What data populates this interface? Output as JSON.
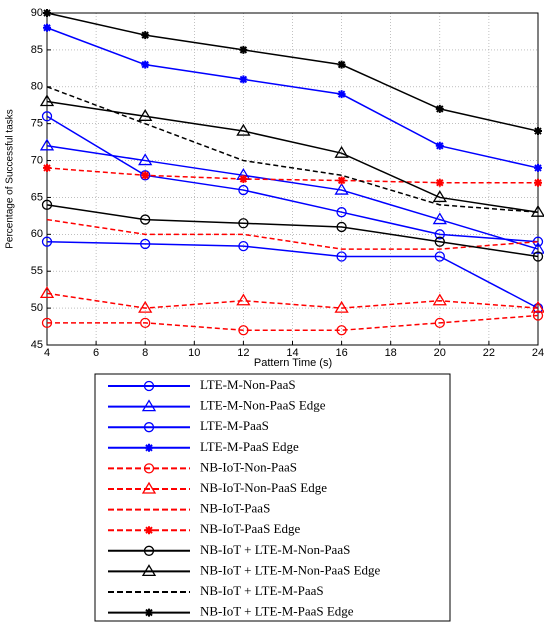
{
  "chart_data": {
    "type": "line",
    "x_label": "Pattern Time (s)",
    "y_label": "Percentage of Successful tasks",
    "x": [
      4,
      8,
      12,
      16,
      20,
      24
    ],
    "xlim": [
      4,
      24
    ],
    "xticks": [
      4,
      6,
      8,
      10,
      12,
      14,
      16,
      18,
      20,
      22,
      24
    ],
    "ylim": [
      45,
      90
    ],
    "yticks": [
      45,
      50,
      55,
      60,
      65,
      70,
      75,
      80,
      85,
      90
    ],
    "grid": true,
    "series": [
      {
        "name": "LTE-M-Non-PaaS",
        "color": "#0000ff",
        "dash": false,
        "marker": "circle",
        "values": [
          59,
          58.7,
          58.4,
          57,
          57,
          50
        ]
      },
      {
        "name": "LTE-M-Non-PaaS Edge",
        "color": "#0000ff",
        "dash": false,
        "marker": "triangle",
        "values": [
          72,
          70,
          68,
          66,
          62,
          58
        ]
      },
      {
        "name": "LTE-M-PaaS",
        "color": "#0000ff",
        "dash": false,
        "marker": "circle",
        "values": [
          76,
          68,
          66,
          63,
          60,
          59
        ]
      },
      {
        "name": "LTE-M-PaaS Edge",
        "color": "#0000ff",
        "dash": false,
        "marker": "star",
        "values": [
          88,
          83,
          81,
          79,
          72,
          69
        ]
      },
      {
        "name": "NB-IoT-Non-PaaS",
        "color": "#ff0000",
        "dash": true,
        "marker": "circle",
        "values": [
          48,
          48,
          47,
          47,
          48,
          49
        ]
      },
      {
        "name": "NB-IoT-Non-PaaS Edge",
        "color": "#ff0000",
        "dash": true,
        "marker": "triangle",
        "values": [
          52,
          50,
          51,
          50,
          51,
          50
        ]
      },
      {
        "name": "NB-IoT-PaaS",
        "color": "#ff0000",
        "dash": true,
        "marker": "none",
        "values": [
          62,
          60,
          60,
          58,
          58,
          59
        ]
      },
      {
        "name": "NB-IoT-PaaS Edge",
        "color": "#ff0000",
        "dash": true,
        "marker": "star",
        "values": [
          69,
          68,
          67.5,
          67.3,
          67,
          67
        ]
      },
      {
        "name": "NB-IoT + LTE-M-Non-PaaS",
        "color": "#000000",
        "dash": false,
        "marker": "circle",
        "values": [
          64,
          62,
          61.5,
          61,
          59,
          57
        ]
      },
      {
        "name": "NB-IoT + LTE-M-Non-PaaS Edge",
        "color": "#000000",
        "dash": false,
        "marker": "triangle",
        "values": [
          78,
          76,
          74,
          71,
          65,
          63
        ]
      },
      {
        "name": "NB-IoT + LTE-M-PaaS",
        "color": "#000000",
        "dash": true,
        "marker": "none",
        "values": [
          80,
          75,
          70,
          68,
          64,
          63
        ]
      },
      {
        "name": "NB-IoT + LTE-M-PaaS Edge",
        "color": "#000000",
        "dash": false,
        "marker": "star",
        "values": [
          90,
          87,
          85,
          83,
          77,
          74
        ]
      }
    ]
  }
}
